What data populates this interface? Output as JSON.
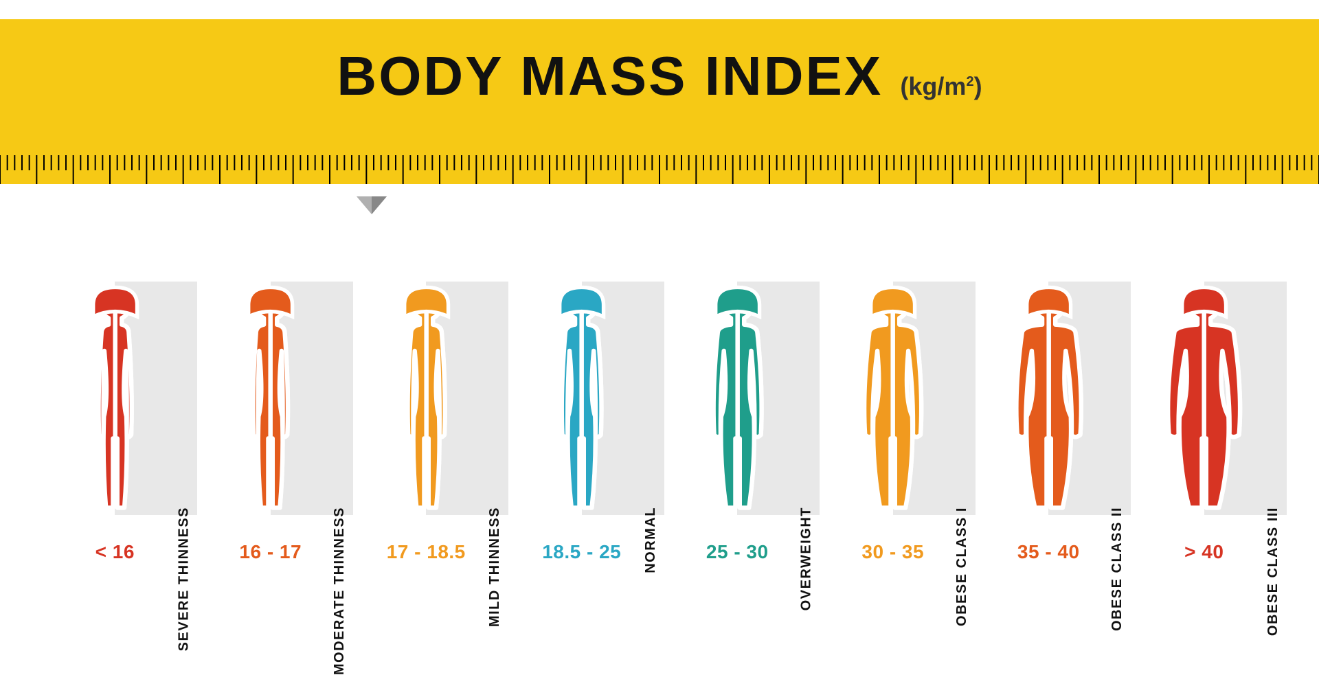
{
  "title": "BODY MASS INDEX",
  "unit_prefix": "(kg/m",
  "unit_exp": "2",
  "unit_suffix": ")",
  "header": {
    "band_color": "#f6c915",
    "title_color": "#111111",
    "title_fontsize": 80,
    "unit_fontsize": 36
  },
  "ruler": {
    "tick_color": "#000000",
    "major_height": 42,
    "minor_height": 22,
    "minor_per_major": 5,
    "major_count": 36,
    "stroke_width": 2,
    "pointer_position_pct": 28.2
  },
  "label_box_color": "#e8e8e8",
  "label_text_color": "#111111",
  "categories": [
    {
      "label": "SEVERE THINNESS",
      "range": "< 16",
      "color": "#d73423",
      "range_color": "#d73423",
      "width_scale": 0.55
    },
    {
      "label": "MODERATE THINNESS",
      "range": "16 - 17",
      "color": "#e45b1c",
      "range_color": "#e45b1c",
      "width_scale": 0.58
    },
    {
      "label": "MILD THINNESS",
      "range": "17 - 18.5",
      "color": "#f19a1f",
      "range_color": "#f19a1f",
      "width_scale": 0.62
    },
    {
      "label": "NORMAL",
      "range": "18.5 - 25",
      "color": "#2aa7c4",
      "range_color": "#2aa7c4",
      "width_scale": 0.66
    },
    {
      "label": "OVERWEIGHT",
      "range": "25 - 30",
      "color": "#1f9e8b",
      "range_color": "#1f9e8b",
      "width_scale": 0.8
    },
    {
      "label": "OBESE CLASS I",
      "range": "30 - 35",
      "color": "#f19a1f",
      "range_color": "#f19a1f",
      "width_scale": 0.95
    },
    {
      "label": "OBESE CLASS II",
      "range": "35 - 40",
      "color": "#e45b1c",
      "range_color": "#e45b1c",
      "width_scale": 1.08
    },
    {
      "label": "OBESE CLASS III",
      "range": "> 40",
      "color": "#d73423",
      "range_color": "#d73423",
      "width_scale": 1.2
    }
  ]
}
